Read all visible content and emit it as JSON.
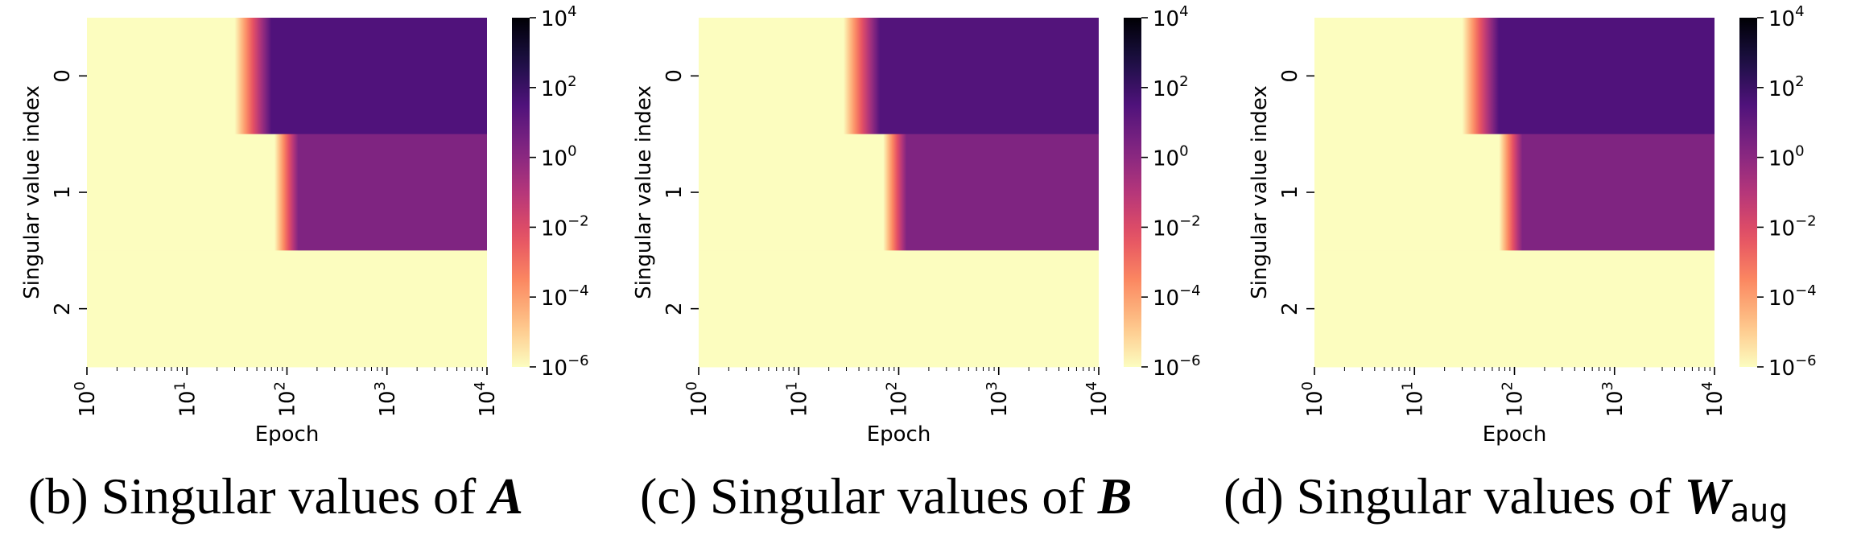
{
  "captions": [
    {
      "label": "(b) Singular values of ",
      "symbol": "A",
      "subscript": ""
    },
    {
      "label": "(c) Singular values of ",
      "symbol": "B",
      "subscript": ""
    },
    {
      "label": "(d) Singular values of ",
      "symbol": "W",
      "subscript": "aug"
    }
  ],
  "chart_data": [
    {
      "type": "heatmap",
      "xlabel": "Epoch",
      "ylabel": "Singular value index",
      "x_scale": "log",
      "xlim": [
        1,
        10000
      ],
      "x_ticks": [
        "10^0",
        "10^1",
        "10^2",
        "10^3",
        "10^4"
      ],
      "y_categories": [
        "0",
        "1",
        "2"
      ],
      "colormap": "magma_r",
      "color_scale": "log",
      "colorbar_range": [
        1e-06,
        10000.0
      ],
      "colorbar_ticks": [
        "10^-6",
        "10^-4",
        "10^-2",
        "10^0",
        "10^2",
        "10^4"
      ],
      "rows": [
        {
          "index": "0",
          "onset_epoch_start": 30,
          "onset_epoch_end": 70,
          "final_value": 30
        },
        {
          "index": "1",
          "onset_epoch_start": 75,
          "onset_epoch_end": 130,
          "final_value": 2
        },
        {
          "index": "2",
          "final_value": 1e-06
        }
      ]
    },
    {
      "type": "heatmap",
      "xlabel": "Epoch",
      "ylabel": "Singular value index",
      "x_scale": "log",
      "xlim": [
        1,
        10000
      ],
      "x_ticks": [
        "10^0",
        "10^1",
        "10^2",
        "10^3",
        "10^4"
      ],
      "y_categories": [
        "0",
        "1",
        "2"
      ],
      "colormap": "magma_r",
      "color_scale": "log",
      "colorbar_range": [
        1e-06,
        10000.0
      ],
      "colorbar_ticks": [
        "10^-6",
        "10^-4",
        "10^-2",
        "10^0",
        "10^2",
        "10^4"
      ],
      "rows": [
        {
          "index": "0",
          "onset_epoch_start": 28,
          "onset_epoch_end": 65,
          "final_value": 25
        },
        {
          "index": "1",
          "onset_epoch_start": 70,
          "onset_epoch_end": 120,
          "final_value": 2
        },
        {
          "index": "2",
          "final_value": 1e-06
        }
      ]
    },
    {
      "type": "heatmap",
      "xlabel": "Epoch",
      "ylabel": "Singular value index",
      "x_scale": "log",
      "xlim": [
        1,
        10000
      ],
      "x_ticks": [
        "10^0",
        "10^1",
        "10^2",
        "10^3",
        "10^4"
      ],
      "y_categories": [
        "0",
        "1",
        "2"
      ],
      "colormap": "magma_r",
      "color_scale": "log",
      "colorbar_range": [
        1e-06,
        10000.0
      ],
      "colorbar_ticks": [
        "10^-6",
        "10^-4",
        "10^-2",
        "10^0",
        "10^2",
        "10^4"
      ],
      "rows": [
        {
          "index": "0",
          "onset_epoch_start": 30,
          "onset_epoch_end": 70,
          "final_value": 30
        },
        {
          "index": "1",
          "onset_epoch_start": 70,
          "onset_epoch_end": 120,
          "final_value": 2
        },
        {
          "index": "2",
          "final_value": 1e-06
        }
      ]
    }
  ]
}
